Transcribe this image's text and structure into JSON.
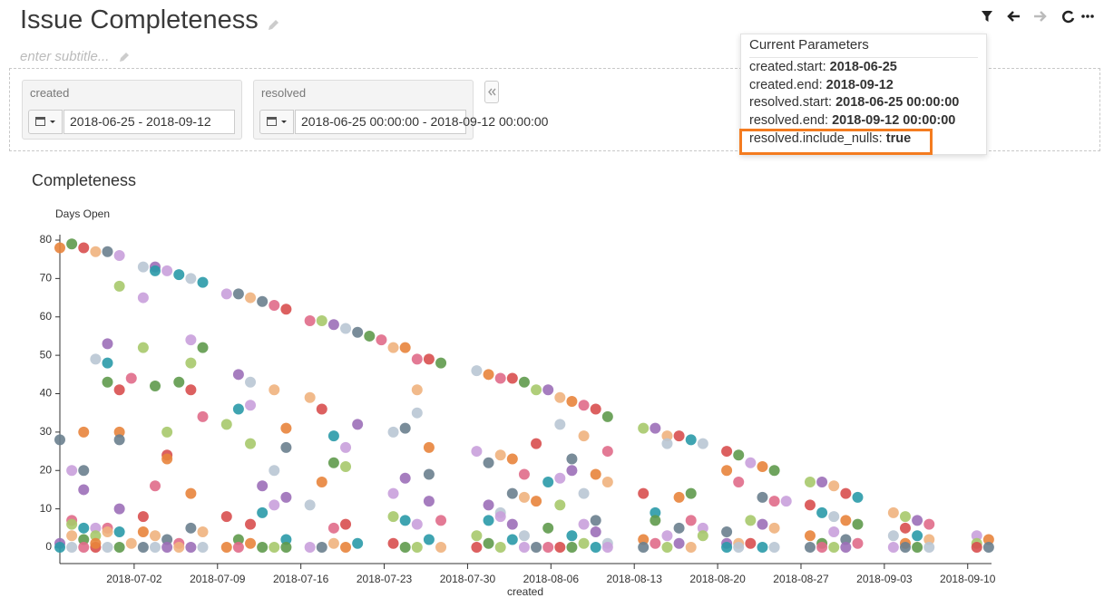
{
  "header": {
    "title": "Issue Completeness",
    "subtitle": "enter subtitle..."
  },
  "filters": [
    {
      "label": "created",
      "value": "2018-06-25 - 2018-09-12"
    },
    {
      "label": "resolved",
      "value": "2018-06-25 00:00:00 - 2018-09-12 00:00:00"
    }
  ],
  "parameters": {
    "title": "Current Parameters",
    "items": [
      {
        "key": "created.start:",
        "value": "2018-06-25"
      },
      {
        "key": "created.end:",
        "value": "2018-09-12"
      },
      {
        "key": "resolved.start:",
        "value": "2018-06-25 00:00:00"
      },
      {
        "key": "resolved.end:",
        "value": "2018-09-12 00:00:00"
      },
      {
        "key": "resolved.include_nulls:",
        "value": "true"
      }
    ]
  },
  "chart_data": {
    "type": "scatter",
    "title": "Completeness",
    "y_label": "Days Open",
    "x_label": "created",
    "colors": [
      "#e8843c",
      "#6a7f8e",
      "#9c6fb8",
      "#2a9aa8",
      "#5f9a4c",
      "#e06b8a",
      "#f0b37e",
      "#b9c6d4",
      "#c9a0dc",
      "#a7c96b",
      "#d84f4f"
    ],
    "xlim": [
      "2018-06-25",
      "2018-09-12"
    ],
    "xticks": [
      "2018-07-02",
      "2018-07-09",
      "2018-07-16",
      "2018-07-23",
      "2018-07-30",
      "2018-08-06",
      "2018-08-13",
      "2018-08-20",
      "2018-08-27",
      "2018-09-03",
      "2018-09-10"
    ],
    "ylim": [
      0,
      80
    ],
    "yticks": [
      0,
      10,
      20,
      30,
      40,
      50,
      60,
      70,
      80
    ],
    "x": [
      "2018-06-25",
      "2018-06-25",
      "2018-06-25",
      "2018-06-25",
      "2018-06-26",
      "2018-06-26",
      "2018-06-26",
      "2018-06-26",
      "2018-06-26",
      "2018-06-26",
      "2018-06-27",
      "2018-06-27",
      "2018-06-27",
      "2018-06-27",
      "2018-06-27",
      "2018-06-27",
      "2018-06-27",
      "2018-06-28",
      "2018-06-28",
      "2018-06-28",
      "2018-06-28",
      "2018-06-28",
      "2018-06-28",
      "2018-06-29",
      "2018-06-29",
      "2018-06-29",
      "2018-06-29",
      "2018-06-29",
      "2018-06-29",
      "2018-06-29",
      "2018-06-30",
      "2018-06-30",
      "2018-06-30",
      "2018-06-30",
      "2018-06-30",
      "2018-06-30",
      "2018-06-30",
      "2018-06-30",
      "2018-07-01",
      "2018-07-01",
      "2018-07-02",
      "2018-07-02",
      "2018-07-02",
      "2018-07-02",
      "2018-07-02",
      "2018-07-02",
      "2018-07-03",
      "2018-07-03",
      "2018-07-03",
      "2018-07-03",
      "2018-07-03",
      "2018-07-03",
      "2018-07-04",
      "2018-07-04",
      "2018-07-04",
      "2018-07-04",
      "2018-07-04",
      "2018-07-04",
      "2018-07-05",
      "2018-07-05",
      "2018-07-05",
      "2018-07-05",
      "2018-07-06",
      "2018-07-06",
      "2018-07-06",
      "2018-07-06",
      "2018-07-06",
      "2018-07-06",
      "2018-07-06",
      "2018-07-07",
      "2018-07-07",
      "2018-07-07",
      "2018-07-07",
      "2018-07-07",
      "2018-07-09",
      "2018-07-09",
      "2018-07-09",
      "2018-07-09",
      "2018-07-10",
      "2018-07-10",
      "2018-07-10",
      "2018-07-10",
      "2018-07-10",
      "2018-07-11",
      "2018-07-11",
      "2018-07-11",
      "2018-07-11",
      "2018-07-11",
      "2018-07-11",
      "2018-07-12",
      "2018-07-12",
      "2018-07-12",
      "2018-07-12",
      "2018-07-13",
      "2018-07-13",
      "2018-07-13",
      "2018-07-13",
      "2018-07-13",
      "2018-07-14",
      "2018-07-14",
      "2018-07-14",
      "2018-07-14",
      "2018-07-14",
      "2018-07-14",
      "2018-07-16",
      "2018-07-16",
      "2018-07-16",
      "2018-07-16",
      "2018-07-17",
      "2018-07-17",
      "2018-07-17",
      "2018-07-17",
      "2018-07-18",
      "2018-07-18",
      "2018-07-18",
      "2018-07-18",
      "2018-07-18",
      "2018-07-19",
      "2018-07-19",
      "2018-07-19",
      "2018-07-19",
      "2018-07-19",
      "2018-07-20",
      "2018-07-20",
      "2018-07-20",
      "2018-07-21",
      "2018-07-22",
      "2018-07-23",
      "2018-07-23",
      "2018-07-23",
      "2018-07-23",
      "2018-07-23",
      "2018-07-24",
      "2018-07-24",
      "2018-07-24",
      "2018-07-24",
      "2018-07-24",
      "2018-07-25",
      "2018-07-25",
      "2018-07-25",
      "2018-07-25",
      "2018-07-25",
      "2018-07-26",
      "2018-07-26",
      "2018-07-26",
      "2018-07-26",
      "2018-07-26",
      "2018-07-27",
      "2018-07-27",
      "2018-07-27",
      "2018-07-30",
      "2018-07-30",
      "2018-07-30",
      "2018-07-30",
      "2018-07-31",
      "2018-07-31",
      "2018-07-31",
      "2018-07-31",
      "2018-07-31",
      "2018-08-01",
      "2018-08-01",
      "2018-08-01",
      "2018-08-01",
      "2018-08-01",
      "2018-08-02",
      "2018-08-02",
      "2018-08-02",
      "2018-08-02",
      "2018-08-02",
      "2018-08-03",
      "2018-08-03",
      "2018-08-03",
      "2018-08-03",
      "2018-08-03",
      "2018-08-04",
      "2018-08-04",
      "2018-08-04",
      "2018-08-04",
      "2018-08-05",
      "2018-08-05",
      "2018-08-05",
      "2018-08-05",
      "2018-08-06",
      "2018-08-06",
      "2018-08-06",
      "2018-08-06",
      "2018-08-06",
      "2018-08-07",
      "2018-08-07",
      "2018-08-07",
      "2018-08-07",
      "2018-08-07",
      "2018-08-08",
      "2018-08-08",
      "2018-08-08",
      "2018-08-08",
      "2018-08-08",
      "2018-08-09",
      "2018-08-09",
      "2018-08-09",
      "2018-08-09",
      "2018-08-09",
      "2018-08-10",
      "2018-08-10",
      "2018-08-10",
      "2018-08-10",
      "2018-08-10",
      "2018-08-13",
      "2018-08-13",
      "2018-08-13",
      "2018-08-13",
      "2018-08-14",
      "2018-08-14",
      "2018-08-14",
      "2018-08-14",
      "2018-08-15",
      "2018-08-15",
      "2018-08-15",
      "2018-08-15",
      "2018-08-16",
      "2018-08-16",
      "2018-08-16",
      "2018-08-16",
      "2018-08-17",
      "2018-08-17",
      "2018-08-17",
      "2018-08-17",
      "2018-08-18",
      "2018-08-18",
      "2018-08-18",
      "2018-08-20",
      "2018-08-20",
      "2018-08-20",
      "2018-08-20",
      "2018-08-20",
      "2018-08-21",
      "2018-08-21",
      "2018-08-21",
      "2018-08-21",
      "2018-08-22",
      "2018-08-22",
      "2018-08-22",
      "2018-08-23",
      "2018-08-23",
      "2018-08-23",
      "2018-08-23",
      "2018-08-24",
      "2018-08-24",
      "2018-08-24",
      "2018-08-24",
      "2018-08-25",
      "2018-08-27",
      "2018-08-27",
      "2018-08-27",
      "2018-08-27",
      "2018-08-28",
      "2018-08-28",
      "2018-08-28",
      "2018-08-28",
      "2018-08-29",
      "2018-08-29",
      "2018-08-29",
      "2018-08-29",
      "2018-08-30",
      "2018-08-30",
      "2018-08-30",
      "2018-08-30",
      "2018-08-31",
      "2018-08-31",
      "2018-08-31",
      "2018-09-03",
      "2018-09-03",
      "2018-09-03",
      "2018-09-04",
      "2018-09-04",
      "2018-09-04",
      "2018-09-04",
      "2018-09-05",
      "2018-09-05",
      "2018-09-05",
      "2018-09-06",
      "2018-09-06",
      "2018-09-06",
      "2018-09-10",
      "2018-09-10",
      "2018-09-10",
      "2018-09-11",
      "2018-09-11"
    ],
    "values": [
      78,
      28,
      1,
      0,
      79,
      7,
      3,
      0,
      20,
      6,
      78,
      30,
      20,
      15,
      5,
      2,
      0,
      77,
      49,
      5,
      3,
      0,
      1,
      77,
      53,
      48,
      43,
      5,
      4,
      0,
      76,
      68,
      41,
      30,
      28,
      10,
      4,
      0,
      44,
      1,
      73,
      65,
      52,
      8,
      4,
      0,
      73,
      72,
      42,
      16,
      3,
      0,
      72,
      30,
      24,
      23,
      2,
      0,
      71,
      43,
      1,
      0,
      70,
      54,
      48,
      41,
      14,
      5,
      0,
      69,
      52,
      34,
      4,
      0,
      66,
      32,
      8,
      0,
      66,
      45,
      36,
      2,
      0,
      65,
      43,
      37,
      27,
      6,
      1,
      64,
      16,
      9,
      0,
      63,
      41,
      20,
      11,
      0,
      62,
      31,
      26,
      13,
      2,
      0,
      59,
      39,
      11,
      0,
      59,
      36,
      17,
      0,
      58,
      29,
      22,
      5,
      1,
      57,
      26,
      21,
      6,
      0,
      56,
      32,
      1,
      55,
      54,
      52,
      30,
      14,
      8,
      1,
      52,
      31,
      18,
      7,
      0,
      49,
      41,
      35,
      6,
      0,
      49,
      26,
      19,
      12,
      2,
      48,
      7,
      0,
      46,
      25,
      3,
      0,
      45,
      22,
      11,
      7,
      1,
      44,
      24,
      9,
      8,
      0,
      44,
      23,
      14,
      6,
      2,
      43,
      19,
      13,
      3,
      0,
      41,
      27,
      12,
      0,
      41,
      17,
      5,
      0,
      39,
      32,
      18,
      11,
      0,
      38,
      23,
      20,
      3,
      0,
      37,
      29,
      14,
      6,
      1,
      36,
      19,
      7,
      4,
      0,
      34,
      25,
      17,
      1,
      0,
      31,
      14,
      2,
      0,
      31,
      9,
      7,
      1,
      29,
      27,
      3,
      0,
      29,
      13,
      5,
      1,
      28,
      14,
      7,
      0,
      27,
      5,
      3,
      25,
      20,
      4,
      1,
      0,
      24,
      17,
      1,
      0,
      22,
      7,
      1,
      21,
      13,
      6,
      0,
      20,
      12,
      5,
      0,
      12,
      17,
      11,
      3,
      0,
      17,
      9,
      1,
      0,
      16,
      8,
      4,
      0,
      14,
      7,
      2,
      0,
      13,
      6,
      1,
      9,
      3,
      0,
      8,
      5,
      1,
      0,
      7,
      3,
      0,
      6,
      2,
      0,
      3,
      1,
      0,
      2,
      0
    ]
  }
}
